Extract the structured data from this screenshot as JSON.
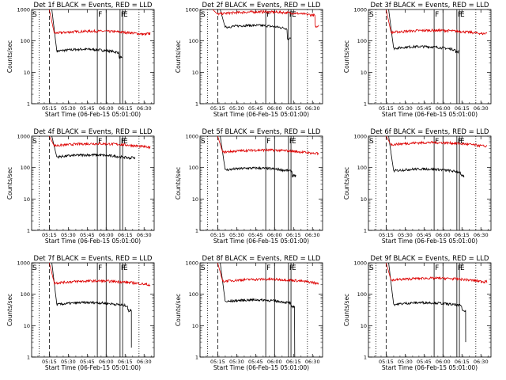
{
  "figure": {
    "description_note": "3x3 grid of detector count-rate plots"
  },
  "chart_data": [
    {
      "type": "line",
      "title": "Det 1f BLACK = Events, RED = LLD",
      "xlabel": "Start Time (06-Feb-15 05:01:00)",
      "ylabel": "Counts/sec",
      "yscale": "log",
      "ylim": [
        1,
        1000
      ],
      "xlim_min": [
        0,
        97
      ],
      "x_tick_labels": [
        "05:15",
        "05:30",
        "05:45",
        "06:00",
        "06:15",
        "06:30"
      ],
      "x_tick_min": [
        14,
        29,
        44,
        59,
        74,
        89
      ],
      "y_tick_labels": [
        "1",
        "10",
        "100",
        "1000"
      ],
      "markers": [
        {
          "label": "S",
          "x": 0
        },
        {
          "label": "F",
          "x": 52
        },
        {
          "label": "F",
          "x": 70
        },
        {
          "label": "E",
          "x": 72
        }
      ],
      "vlines": [
        {
          "x": 6,
          "style": "dotted"
        },
        {
          "x": 14,
          "style": "dashed"
        },
        {
          "x": 52,
          "style": "solid"
        },
        {
          "x": 59,
          "style": "solid"
        },
        {
          "x": 70,
          "style": "solid"
        },
        {
          "x": 72,
          "style": "solid"
        },
        {
          "x": 85,
          "style": "dotted"
        }
      ],
      "series": [
        {
          "name": "Events",
          "color": "#000000",
          "start": 16,
          "end": 72,
          "level": 45,
          "spike": 1000,
          "dropout": null,
          "end_value": 30
        },
        {
          "name": "LLD",
          "color": "#dd0000",
          "start": 14,
          "end": 94,
          "level": 170,
          "spike": 1000,
          "dropout": null,
          "end_value": 170
        }
      ]
    },
    {
      "type": "line",
      "title": "Det 2f BLACK = Events, RED = LLD",
      "xlabel": "Start Time (06-Feb-15 05:01:00)",
      "ylabel": "Counts/sec",
      "yscale": "log",
      "ylim": [
        1,
        1000
      ],
      "xlim_min": [
        0,
        97
      ],
      "x_tick_labels": [
        "05:15",
        "05:30",
        "05:45",
        "06:00",
        "06:15",
        "06:30"
      ],
      "x_tick_min": [
        14,
        29,
        44,
        59,
        74,
        89
      ],
      "y_tick_labels": [
        "1",
        "10",
        "100",
        "1000"
      ],
      "markers": [
        {
          "label": "S",
          "x": 0
        },
        {
          "label": "F",
          "x": 52
        },
        {
          "label": "F",
          "x": 70
        },
        {
          "label": "E",
          "x": 72
        }
      ],
      "vlines": [
        {
          "x": 6,
          "style": "dotted"
        },
        {
          "x": 14,
          "style": "dashed"
        },
        {
          "x": 52,
          "style": "solid"
        },
        {
          "x": 59,
          "style": "solid"
        },
        {
          "x": 70,
          "style": "solid"
        },
        {
          "x": 72,
          "style": "solid"
        },
        {
          "x": 85,
          "style": "dotted"
        }
      ],
      "series": [
        {
          "name": "Events",
          "color": "#000000",
          "start": 16,
          "end": 72,
          "level": 260,
          "spike": 1000,
          "dropout": null,
          "end_value": 120
        },
        {
          "name": "LLD",
          "color": "#dd0000",
          "start": 10,
          "end": 94,
          "level": 700,
          "spike": 1000,
          "dropout": null,
          "end_value": 300
        }
      ]
    },
    {
      "type": "line",
      "title": "Det 3f BLACK = Events, RED = LLD",
      "xlabel": "Start Time (06-Feb-15 05:01:00)",
      "ylabel": "Counts/sec",
      "yscale": "log",
      "ylim": [
        1,
        1000
      ],
      "xlim_min": [
        0,
        97
      ],
      "x_tick_labels": [
        "05:15",
        "05:30",
        "05:45",
        "06:00",
        "06:15",
        "06:30"
      ],
      "x_tick_min": [
        14,
        29,
        44,
        59,
        74,
        89
      ],
      "y_tick_labels": [
        "1",
        "10",
        "100",
        "1000"
      ],
      "markers": [
        {
          "label": "S",
          "x": 0
        },
        {
          "label": "F",
          "x": 52
        },
        {
          "label": "F",
          "x": 70
        },
        {
          "label": "E",
          "x": 72
        }
      ],
      "vlines": [
        {
          "x": 6,
          "style": "dotted"
        },
        {
          "x": 14,
          "style": "dashed"
        },
        {
          "x": 52,
          "style": "solid"
        },
        {
          "x": 59,
          "style": "solid"
        },
        {
          "x": 70,
          "style": "solid"
        },
        {
          "x": 72,
          "style": "solid"
        },
        {
          "x": 85,
          "style": "dotted"
        }
      ],
      "series": [
        {
          "name": "Events",
          "color": "#000000",
          "start": 16,
          "end": 72,
          "level": 55,
          "spike": 1000,
          "dropout": null,
          "end_value": 45
        },
        {
          "name": "LLD",
          "color": "#dd0000",
          "start": 14,
          "end": 94,
          "level": 180,
          "spike": 1000,
          "dropout": null,
          "end_value": 170
        }
      ]
    },
    {
      "type": "line",
      "title": "Det 4f BLACK = Events, RED = LLD",
      "xlabel": "Start Time (06-Feb-15 05:01:00)",
      "ylabel": "Counts/sec",
      "yscale": "log",
      "ylim": [
        1,
        1000
      ],
      "xlim_min": [
        0,
        97
      ],
      "x_tick_labels": [
        "05:15",
        "05:30",
        "05:45",
        "06:00",
        "06:15",
        "06:30"
      ],
      "x_tick_min": [
        14,
        29,
        44,
        59,
        74,
        89
      ],
      "y_tick_labels": [
        "1",
        "10",
        "100",
        "1000"
      ],
      "markers": [
        {
          "label": "S",
          "x": 0
        },
        {
          "label": "F",
          "x": 52
        },
        {
          "label": "F",
          "x": 70
        },
        {
          "label": "E",
          "x": 72
        }
      ],
      "vlines": [
        {
          "x": 6,
          "style": "dotted"
        },
        {
          "x": 14,
          "style": "dashed"
        },
        {
          "x": 52,
          "style": "solid"
        },
        {
          "x": 59,
          "style": "solid"
        },
        {
          "x": 70,
          "style": "solid"
        },
        {
          "x": 72,
          "style": "solid"
        },
        {
          "x": 85,
          "style": "dotted"
        }
      ],
      "series": [
        {
          "name": "Events",
          "color": "#000000",
          "start": 16,
          "end": 82,
          "level": 210,
          "spike": 1000,
          "dropout": null,
          "end_value": 210
        },
        {
          "name": "LLD",
          "color": "#dd0000",
          "start": 14,
          "end": 94,
          "level": 480,
          "spike": 1000,
          "dropout": null,
          "end_value": 450
        }
      ]
    },
    {
      "type": "line",
      "title": "Det 5f BLACK = Events, RED = LLD",
      "xlabel": "Start Time (06-Feb-15 05:01:00)",
      "ylabel": "Counts/sec",
      "yscale": "log",
      "ylim": [
        1,
        1000
      ],
      "xlim_min": [
        0,
        97
      ],
      "x_tick_labels": [
        "05:15",
        "05:30",
        "05:45",
        "06:00",
        "06:15",
        "06:30"
      ],
      "x_tick_min": [
        14,
        29,
        44,
        59,
        74,
        89
      ],
      "y_tick_labels": [
        "1",
        "10",
        "100",
        "1000"
      ],
      "markers": [
        {
          "label": "S",
          "x": 0
        },
        {
          "label": "F",
          "x": 52
        },
        {
          "label": "F",
          "x": 70
        },
        {
          "label": "E",
          "x": 72
        }
      ],
      "vlines": [
        {
          "x": 6,
          "style": "dotted"
        },
        {
          "x": 14,
          "style": "dashed"
        },
        {
          "x": 52,
          "style": "solid"
        },
        {
          "x": 59,
          "style": "solid"
        },
        {
          "x": 70,
          "style": "solid"
        },
        {
          "x": 72,
          "style": "solid"
        },
        {
          "x": 85,
          "style": "dotted"
        }
      ],
      "series": [
        {
          "name": "Events",
          "color": "#000000",
          "start": 16,
          "end": 76,
          "level": 80,
          "spike": 1000,
          "dropout": null,
          "end_value": 55
        },
        {
          "name": "LLD",
          "color": "#dd0000",
          "start": 14,
          "end": 94,
          "level": 300,
          "spike": 1000,
          "dropout": null,
          "end_value": 280
        }
      ]
    },
    {
      "type": "line",
      "title": "Det 6f BLACK = Events, RED = LLD",
      "xlabel": "Start Time (06-Feb-15 05:01:00)",
      "ylabel": "Counts/sec",
      "yscale": "log",
      "ylim": [
        1,
        1000
      ],
      "xlim_min": [
        0,
        97
      ],
      "x_tick_labels": [
        "05:15",
        "05:30",
        "05:45",
        "06:00",
        "06:15",
        "06:30"
      ],
      "x_tick_min": [
        14,
        29,
        44,
        59,
        74,
        89
      ],
      "y_tick_labels": [
        "1",
        "10",
        "100",
        "1000"
      ],
      "markers": [
        {
          "label": "S",
          "x": 0
        },
        {
          "label": "F",
          "x": 52
        },
        {
          "label": "F",
          "x": 70
        },
        {
          "label": "E",
          "x": 72
        }
      ],
      "vlines": [
        {
          "x": 6,
          "style": "dotted"
        },
        {
          "x": 14,
          "style": "dashed"
        },
        {
          "x": 52,
          "style": "solid"
        },
        {
          "x": 59,
          "style": "solid"
        },
        {
          "x": 70,
          "style": "solid"
        },
        {
          "x": 72,
          "style": "solid"
        },
        {
          "x": 85,
          "style": "dotted"
        }
      ],
      "series": [
        {
          "name": "Events",
          "color": "#000000",
          "start": 16,
          "end": 76,
          "level": 75,
          "spike": 1000,
          "dropout": null,
          "end_value": 55
        },
        {
          "name": "LLD",
          "color": "#dd0000",
          "start": 14,
          "end": 94,
          "level": 520,
          "spike": 1000,
          "dropout": null,
          "end_value": 480
        }
      ]
    },
    {
      "type": "line",
      "title": "Det 7f BLACK = Events, RED = LLD",
      "xlabel": "Start Time (06-Feb-15 05:01:00)",
      "ylabel": "Counts/sec",
      "yscale": "log",
      "ylim": [
        1,
        1000
      ],
      "xlim_min": [
        0,
        97
      ],
      "x_tick_labels": [
        "05:15",
        "05:30",
        "05:45",
        "06:00",
        "06:15",
        "06:30"
      ],
      "x_tick_min": [
        14,
        29,
        44,
        59,
        74,
        89
      ],
      "y_tick_labels": [
        "1",
        "10",
        "100",
        "1000"
      ],
      "markers": [
        {
          "label": "S",
          "x": 0
        },
        {
          "label": "F",
          "x": 52
        },
        {
          "label": "F",
          "x": 70
        },
        {
          "label": "E",
          "x": 72
        }
      ],
      "vlines": [
        {
          "x": 6,
          "style": "dotted"
        },
        {
          "x": 14,
          "style": "dashed"
        },
        {
          "x": 52,
          "style": "solid"
        },
        {
          "x": 59,
          "style": "solid"
        },
        {
          "x": 70,
          "style": "solid"
        },
        {
          "x": 72,
          "style": "solid"
        },
        {
          "x": 85,
          "style": "dotted"
        }
      ],
      "series": [
        {
          "name": "Events",
          "color": "#000000",
          "start": 16,
          "end": 79,
          "level": 45,
          "spike": 1000,
          "dropout": 2,
          "end_value": 30
        },
        {
          "name": "LLD",
          "color": "#dd0000",
          "start": 14,
          "end": 94,
          "level": 220,
          "spike": 1000,
          "dropout": null,
          "end_value": 190
        }
      ]
    },
    {
      "type": "line",
      "title": "Det 8f BLACK = Events, RED = LLD",
      "xlabel": "Start Time (06-Feb-15 05:01:00)",
      "ylabel": "Counts/sec",
      "yscale": "log",
      "ylim": [
        1,
        1000
      ],
      "xlim_min": [
        0,
        97
      ],
      "x_tick_labels": [
        "05:15",
        "05:30",
        "05:45",
        "06:00",
        "06:15",
        "06:30"
      ],
      "x_tick_min": [
        14,
        29,
        44,
        59,
        74,
        89
      ],
      "y_tick_labels": [
        "1",
        "10",
        "100",
        "1000"
      ],
      "markers": [
        {
          "label": "S",
          "x": 0
        },
        {
          "label": "F",
          "x": 52
        },
        {
          "label": "F",
          "x": 70
        },
        {
          "label": "E",
          "x": 72
        }
      ],
      "vlines": [
        {
          "x": 6,
          "style": "dotted"
        },
        {
          "x": 14,
          "style": "dashed"
        },
        {
          "x": 52,
          "style": "solid"
        },
        {
          "x": 59,
          "style": "solid"
        },
        {
          "x": 70,
          "style": "solid"
        },
        {
          "x": 72,
          "style": "solid"
        },
        {
          "x": 85,
          "style": "dotted"
        }
      ],
      "series": [
        {
          "name": "Events",
          "color": "#000000",
          "start": 16,
          "end": 75,
          "level": 55,
          "spike": 1000,
          "dropout": 1,
          "end_value": 40
        },
        {
          "name": "LLD",
          "color": "#dd0000",
          "start": 14,
          "end": 94,
          "level": 250,
          "spike": 1000,
          "dropout": null,
          "end_value": 230
        }
      ]
    },
    {
      "type": "line",
      "title": "Det 9f BLACK = Events, RED = LLD",
      "xlabel": "Start Time (06-Feb-15 05:01:00)",
      "ylabel": "Counts/sec",
      "yscale": "log",
      "ylim": [
        1,
        1000
      ],
      "xlim_min": [
        0,
        97
      ],
      "x_tick_labels": [
        "05:15",
        "05:30",
        "05:45",
        "06:00",
        "06:15",
        "06:30"
      ],
      "x_tick_min": [
        14,
        29,
        44,
        59,
        74,
        89
      ],
      "y_tick_labels": [
        "1",
        "10",
        "100",
        "1000"
      ],
      "markers": [
        {
          "label": "S",
          "x": 0
        },
        {
          "label": "F",
          "x": 52
        },
        {
          "label": "F",
          "x": 70
        },
        {
          "label": "E",
          "x": 72
        }
      ],
      "vlines": [
        {
          "x": 6,
          "style": "dotted"
        },
        {
          "x": 14,
          "style": "dashed"
        },
        {
          "x": 52,
          "style": "solid"
        },
        {
          "x": 59,
          "style": "solid"
        },
        {
          "x": 70,
          "style": "solid"
        },
        {
          "x": 72,
          "style": "solid"
        },
        {
          "x": 85,
          "style": "dotted"
        }
      ],
      "series": [
        {
          "name": "Events",
          "color": "#000000",
          "start": 16,
          "end": 77,
          "level": 45,
          "spike": 1000,
          "dropout": 3,
          "end_value": 30
        },
        {
          "name": "LLD",
          "color": "#dd0000",
          "start": 14,
          "end": 94,
          "level": 270,
          "spike": 1000,
          "dropout": null,
          "end_value": 250
        }
      ]
    }
  ]
}
